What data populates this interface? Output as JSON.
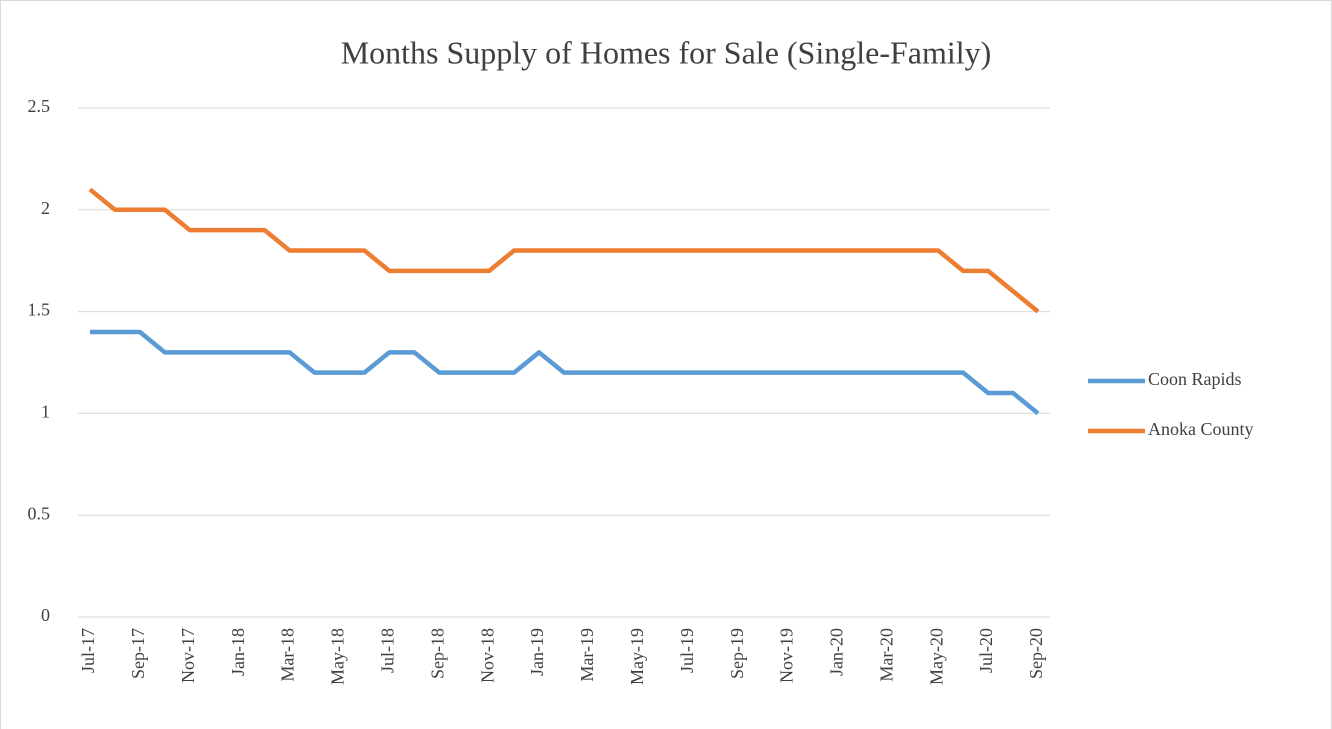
{
  "chart_data": {
    "type": "line",
    "title": "Months Supply of Homes for Sale (Single-Family)",
    "categories": [
      "Jul-17",
      null,
      "Sep-17",
      null,
      "Nov-17",
      null,
      "Jan-18",
      null,
      "Mar-18",
      null,
      "May-18",
      null,
      "Jul-18",
      null,
      "Sep-18",
      null,
      "Nov-18",
      null,
      "Jan-19",
      null,
      "Mar-19",
      null,
      "May-19",
      null,
      "Jul-19",
      null,
      "Sep-19",
      null,
      "Nov-19",
      null,
      "Jan-20",
      null,
      "Mar-20",
      null,
      "May-20",
      null,
      "Jul-20",
      null,
      "Sep-20"
    ],
    "series": [
      {
        "name": "Coon Rapids",
        "color": "#5b9bd5",
        "values": [
          1.4,
          1.4,
          1.4,
          1.3,
          1.3,
          1.3,
          1.3,
          1.3,
          1.3,
          1.2,
          1.2,
          1.2,
          1.3,
          1.3,
          1.2,
          1.2,
          1.2,
          1.2,
          1.3,
          1.2,
          1.2,
          1.2,
          1.2,
          1.2,
          1.2,
          1.2,
          1.2,
          1.2,
          1.2,
          1.2,
          1.2,
          1.2,
          1.2,
          1.2,
          1.2,
          1.2,
          1.1,
          1.1,
          1.0
        ]
      },
      {
        "name": "Anoka County",
        "color": "#ed7d31",
        "values": [
          2.1,
          2.0,
          2.0,
          2.0,
          1.9,
          1.9,
          1.9,
          1.9,
          1.8,
          1.8,
          1.8,
          1.8,
          1.7,
          1.7,
          1.7,
          1.7,
          1.7,
          1.8,
          1.8,
          1.8,
          1.8,
          1.8,
          1.8,
          1.8,
          1.8,
          1.8,
          1.8,
          1.8,
          1.8,
          1.8,
          1.8,
          1.8,
          1.8,
          1.8,
          1.8,
          1.7,
          1.7,
          1.6,
          1.5
        ]
      }
    ],
    "ylim": [
      0,
      2.5
    ],
    "yticks": [
      0,
      0.5,
      1,
      1.5,
      2,
      2.5
    ],
    "grid": true,
    "legend": "right"
  }
}
